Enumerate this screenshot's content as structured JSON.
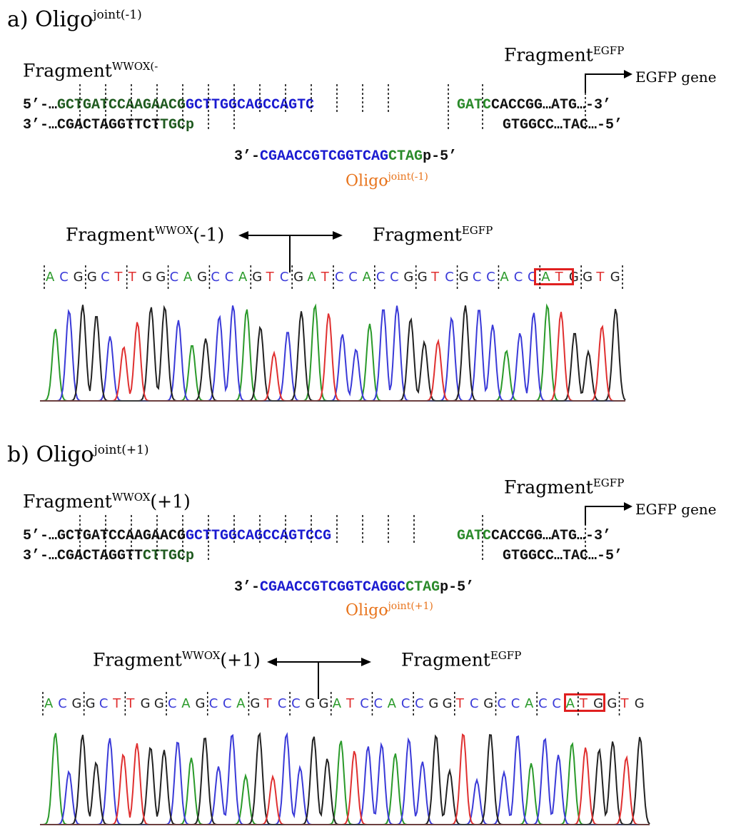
{
  "panel_a": {
    "label_main": "a) Oligo",
    "label_sup": "joint(-1)",
    "wwox_title_main": "Fragment",
    "wwox_title_sup": "WWOX(-",
    "egfp_title_main": "Fragment",
    "egfp_title_sup": "EGFP",
    "egfp_gene": "EGFP gene",
    "top_strand": [
      {
        "t": "5’-…",
        "c": "col-k"
      },
      {
        "t": "GCTGATCCAAGAACG",
        "c": "col-dg"
      },
      {
        "t": "GCTTGGCAGCCAGTC",
        "c": "col-b"
      }
    ],
    "bottom_strand": [
      {
        "t": "3’-…CGACTAGGTTCT",
        "c": "col-k"
      },
      {
        "t": "TGCp",
        "c": "col-dg"
      }
    ],
    "egfp_top": [
      {
        "t": "GATC",
        "c": "col-g"
      },
      {
        "t": "CACCGG…ATG…-3’",
        "c": "col-k"
      }
    ],
    "egfp_bottom": [
      {
        "t": "GTGGCC…TAC…-5’",
        "c": "col-k"
      }
    ],
    "oligo_seq": [
      {
        "t": "3’-",
        "c": "col-k"
      },
      {
        "t": "CGAACCGTCGGTCAG",
        "c": "col-b"
      },
      {
        "t": "CTAG",
        "c": "col-g"
      },
      {
        "t": "p-5’",
        "c": "col-k"
      }
    ],
    "oligo_name_main": "Oligo",
    "oligo_name_sup": "joint(-1)",
    "junction_wwox_main": "Fragment",
    "junction_wwox_sup": "WWOX",
    "junction_wwox_suffix": "(-1)",
    "junction_egfp_main": "Fragment",
    "junction_egfp_sup": "EGFP",
    "trace_bases": "ACGGCTTGGCAGCCAGTCGATCCACCGGTCGCCACCATGGTG"
  },
  "panel_b": {
    "label_main": "b) Oligo",
    "label_sup": "joint(+1)",
    "wwox_title_main": "Fragment",
    "wwox_title_sup": "WWOX",
    "wwox_title_suffix": "(+1)",
    "egfp_title_main": "Fragment",
    "egfp_title_sup": "EGFP",
    "egfp_gene": "EGFP gene",
    "top_strand": [
      {
        "t": "5’-…",
        "c": "col-k"
      },
      {
        "t": "GCTGATCCAAGAACG",
        "c": "col-k"
      },
      {
        "t": "GCTTGGCAGCCAGTCCG",
        "c": "col-b"
      }
    ],
    "bottom_strand": [
      {
        "t": "3’-…CGACTAGGTT",
        "c": "col-k"
      },
      {
        "t": "CTTGCp",
        "c": "col-dg"
      }
    ],
    "egfp_top": [
      {
        "t": "GATC",
        "c": "col-g"
      },
      {
        "t": "CACCGG…ATG…-3’",
        "c": "col-k"
      }
    ],
    "egfp_bottom": [
      {
        "t": "GTGGCC…TAC…-5’",
        "c": "col-k"
      }
    ],
    "oligo_seq": [
      {
        "t": "3’-",
        "c": "col-k"
      },
      {
        "t": "CGAACCGTCGGTCAGGC",
        "c": "col-b"
      },
      {
        "t": "CTAG",
        "c": "col-g"
      },
      {
        "t": "p-5’",
        "c": "col-k"
      }
    ],
    "oligo_name_main": "Oligo",
    "oligo_name_sup": "joint(+1)",
    "junction_wwox_main": "Fragment",
    "junction_wwox_sup": "WWOX",
    "junction_wwox_suffix": "(+1)",
    "junction_egfp_main": "Fragment",
    "junction_egfp_sup": "EGFP",
    "trace_bases": "ACGGCTTGGCAGCCAGTCCGGATCCACCGGTCGCCACCATGGTG"
  },
  "colors": {
    "A": "#2a9a2a",
    "C": "#3a3ad8",
    "G": "#222222",
    "T": "#e03030",
    "highlight_box": "#e02020",
    "oligo_label": "#e8741c"
  }
}
